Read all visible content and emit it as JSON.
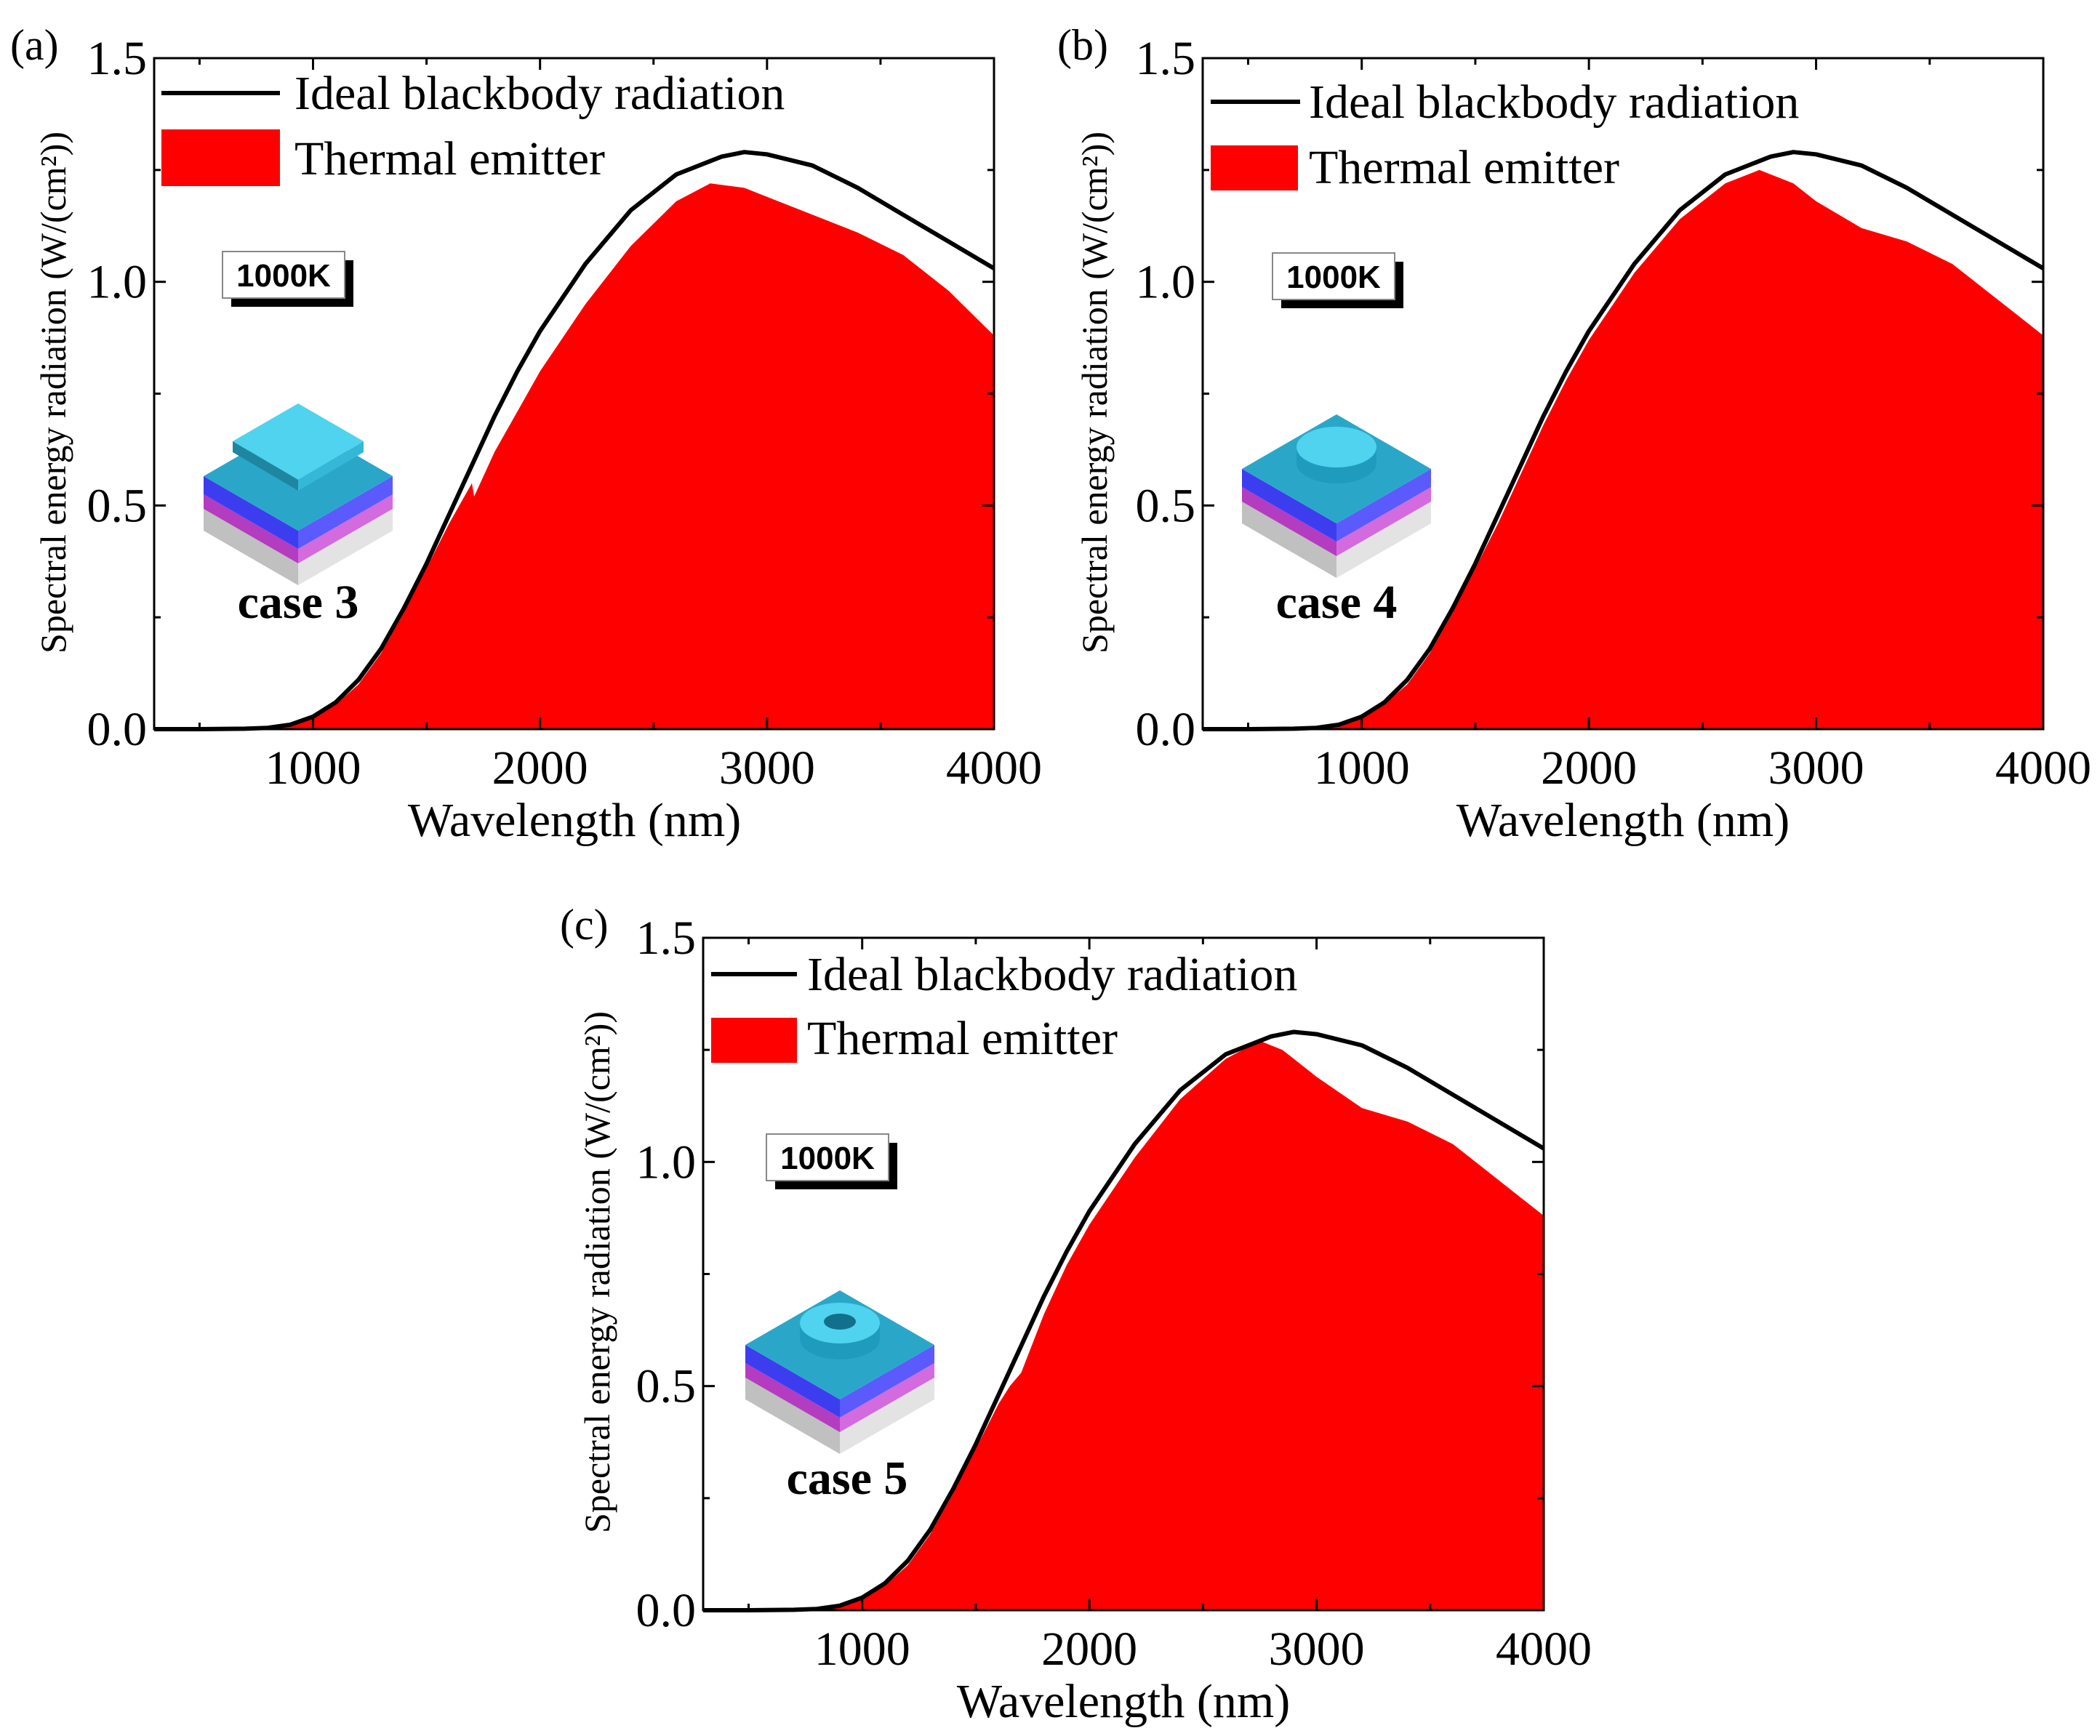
{
  "colors": {
    "blackbody": "#000000",
    "emitter": "#ff0000",
    "layer_top": "#2aa7c8",
    "layer_top_light": "#4fd3ef",
    "layer_blue": "#3d3df0",
    "layer_magenta": "#b43cc0",
    "layer_gray": "#c0c0c0"
  },
  "chart_data": [
    {
      "panel": "(a)",
      "type": "area",
      "xlabel": "Wavelength (nm)",
      "ylabel": "Spectral energy radiation (W/(cm²))",
      "xlim": [
        300,
        4000
      ],
      "ylim": [
        0,
        1.5
      ],
      "xticks": [
        "1000",
        "2000",
        "3000",
        "4000"
      ],
      "yticks": [
        "0.0",
        "0.5",
        "1.0",
        "1.5"
      ],
      "temperature": "1000K",
      "case_label": "case 3",
      "structure_icon": "square-pillar-icon",
      "series": [
        {
          "name": "Ideal blackbody radiation",
          "style": "line",
          "x": [
            300,
            500,
            700,
            800,
            900,
            1000,
            1100,
            1200,
            1300,
            1400,
            1500,
            1600,
            1700,
            1800,
            1900,
            2000,
            2200,
            2400,
            2600,
            2800,
            2900,
            3000,
            3200,
            3400,
            3600,
            3800,
            4000
          ],
          "y": [
            0,
            0,
            0.001,
            0.003,
            0.01,
            0.028,
            0.06,
            0.11,
            0.18,
            0.27,
            0.37,
            0.48,
            0.59,
            0.7,
            0.8,
            0.89,
            1.04,
            1.16,
            1.24,
            1.28,
            1.29,
            1.285,
            1.26,
            1.21,
            1.15,
            1.09,
            1.03
          ]
        },
        {
          "name": "Thermal emitter",
          "style": "fill",
          "x": [
            300,
            700,
            900,
            1000,
            1100,
            1200,
            1300,
            1400,
            1500,
            1600,
            1700,
            1710,
            1800,
            1900,
            2000,
            2200,
            2400,
            2600,
            2750,
            2900,
            3000,
            3200,
            3400,
            3600,
            3800,
            3900,
            4000
          ],
          "y": [
            0,
            0.001,
            0.008,
            0.024,
            0.055,
            0.1,
            0.17,
            0.26,
            0.36,
            0.46,
            0.55,
            0.52,
            0.62,
            0.71,
            0.8,
            0.95,
            1.08,
            1.18,
            1.22,
            1.21,
            1.19,
            1.15,
            1.11,
            1.06,
            0.98,
            0.93,
            0.88
          ]
        }
      ]
    },
    {
      "panel": "(b)",
      "type": "area",
      "xlabel": "Wavelength (nm)",
      "ylabel": "Spectral energy radiation (W/(cm²))",
      "xlim": [
        300,
        4000
      ],
      "ylim": [
        0,
        1.5
      ],
      "xticks": [
        "1000",
        "2000",
        "3000",
        "4000"
      ],
      "yticks": [
        "0.0",
        "0.5",
        "1.0",
        "1.5"
      ],
      "temperature": "1000K",
      "case_label": "case 4",
      "structure_icon": "cylinder-pillar-icon",
      "series": [
        {
          "name": "Ideal blackbody radiation",
          "style": "line",
          "x": [
            300,
            500,
            700,
            800,
            900,
            1000,
            1100,
            1200,
            1300,
            1400,
            1500,
            1600,
            1700,
            1800,
            1900,
            2000,
            2200,
            2400,
            2600,
            2800,
            2900,
            3000,
            3200,
            3400,
            3600,
            3800,
            4000
          ],
          "y": [
            0,
            0,
            0.001,
            0.003,
            0.01,
            0.028,
            0.06,
            0.11,
            0.18,
            0.27,
            0.37,
            0.48,
            0.59,
            0.7,
            0.8,
            0.89,
            1.04,
            1.16,
            1.24,
            1.28,
            1.29,
            1.285,
            1.26,
            1.21,
            1.15,
            1.09,
            1.03
          ]
        },
        {
          "name": "Thermal emitter",
          "style": "fill",
          "x": [
            300,
            700,
            900,
            1000,
            1100,
            1200,
            1300,
            1400,
            1500,
            1600,
            1700,
            1800,
            1900,
            2000,
            2200,
            2400,
            2600,
            2750,
            2900,
            3000,
            3200,
            3400,
            3600,
            3800,
            3900,
            4000
          ],
          "y": [
            0,
            0.001,
            0.008,
            0.025,
            0.056,
            0.1,
            0.17,
            0.26,
            0.36,
            0.46,
            0.57,
            0.68,
            0.78,
            0.87,
            1.02,
            1.14,
            1.22,
            1.25,
            1.22,
            1.18,
            1.12,
            1.09,
            1.04,
            0.96,
            0.92,
            0.88
          ]
        }
      ]
    },
    {
      "panel": "(c)",
      "type": "area",
      "xlabel": "Wavelength (nm)",
      "ylabel": "Spectral energy radiation (W/(cm²))",
      "xlim": [
        300,
        4000
      ],
      "ylim": [
        0,
        1.5
      ],
      "xticks": [
        "1000",
        "2000",
        "3000",
        "4000"
      ],
      "yticks": [
        "0.0",
        "0.5",
        "1.0",
        "1.5"
      ],
      "temperature": "1000K",
      "case_label": "case 5",
      "structure_icon": "ring-pillar-icon",
      "series": [
        {
          "name": "Ideal blackbody radiation",
          "style": "line",
          "x": [
            300,
            500,
            700,
            800,
            900,
            1000,
            1100,
            1200,
            1300,
            1400,
            1500,
            1600,
            1700,
            1800,
            1900,
            2000,
            2200,
            2400,
            2600,
            2800,
            2900,
            3000,
            3200,
            3400,
            3600,
            3800,
            4000
          ],
          "y": [
            0,
            0,
            0.001,
            0.003,
            0.01,
            0.028,
            0.06,
            0.11,
            0.18,
            0.27,
            0.37,
            0.48,
            0.59,
            0.7,
            0.8,
            0.89,
            1.04,
            1.16,
            1.24,
            1.28,
            1.29,
            1.285,
            1.26,
            1.21,
            1.15,
            1.09,
            1.03
          ]
        },
        {
          "name": "Thermal emitter",
          "style": "fill",
          "x": [
            300,
            700,
            900,
            1000,
            1100,
            1200,
            1300,
            1400,
            1500,
            1600,
            1650,
            1700,
            1800,
            1900,
            2000,
            2200,
            2400,
            2600,
            2750,
            2850,
            3000,
            3200,
            3400,
            3600,
            3800,
            3900,
            4000
          ],
          "y": [
            0,
            0.001,
            0.008,
            0.024,
            0.055,
            0.1,
            0.17,
            0.26,
            0.36,
            0.46,
            0.5,
            0.53,
            0.66,
            0.77,
            0.86,
            1.01,
            1.14,
            1.23,
            1.27,
            1.25,
            1.19,
            1.12,
            1.09,
            1.04,
            0.96,
            0.92,
            0.88
          ]
        }
      ]
    }
  ]
}
